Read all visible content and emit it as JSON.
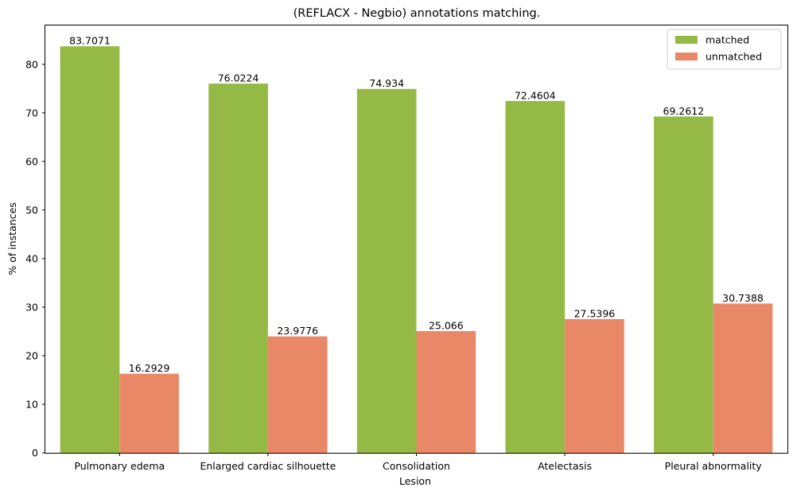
{
  "chart_data": {
    "type": "bar",
    "title": "(REFLACX - Negbio) annotations matching.",
    "xlabel": "Lesion",
    "ylabel": "% of instances",
    "ylim": [
      0,
      88
    ],
    "yticks": [
      0,
      10,
      20,
      30,
      40,
      50,
      60,
      70,
      80
    ],
    "categories": [
      "Pulmonary edema",
      "Enlarged cardiac silhouette",
      "Consolidation",
      "Atelectasis",
      "Pleural abnormality"
    ],
    "series": [
      {
        "name": "matched",
        "color": "#95b945",
        "values": [
          83.7071,
          76.0224,
          74.934,
          72.4604,
          69.2612
        ],
        "labels": [
          "83.7071",
          "76.0224",
          "74.934",
          "72.4604",
          "69.2612"
        ]
      },
      {
        "name": "unmatched",
        "color": "#e98866",
        "values": [
          16.2929,
          23.9776,
          25.066,
          27.5396,
          30.7388
        ],
        "labels": [
          "16.2929",
          "23.9776",
          "25.066",
          "27.5396",
          "30.7388"
        ]
      }
    ],
    "grid": false,
    "legend_position": "top-right"
  }
}
